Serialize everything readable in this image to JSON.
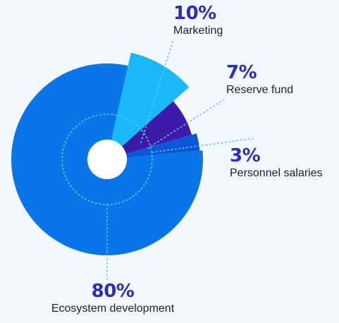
{
  "chart_data": {
    "type": "pie",
    "slices": [
      {
        "label": "Ecosystem development",
        "percent_label": "80%",
        "value": 80,
        "color": "#0a75e6"
      },
      {
        "label": "Marketing",
        "percent_label": "10%",
        "value": 10,
        "color": "#1ab8f7"
      },
      {
        "label": "Reserve fund",
        "percent_label": "7%",
        "value": 7,
        "color": "#3b1ca8"
      },
      {
        "label": "Personnel salaries",
        "percent_label": "3%",
        "value": 3,
        "color": "#0a56d8"
      }
    ]
  },
  "colors": {
    "percent_text": "#2b2fb3",
    "label_text": "#1b1f2b",
    "leader_line": "#5ec8f5"
  }
}
